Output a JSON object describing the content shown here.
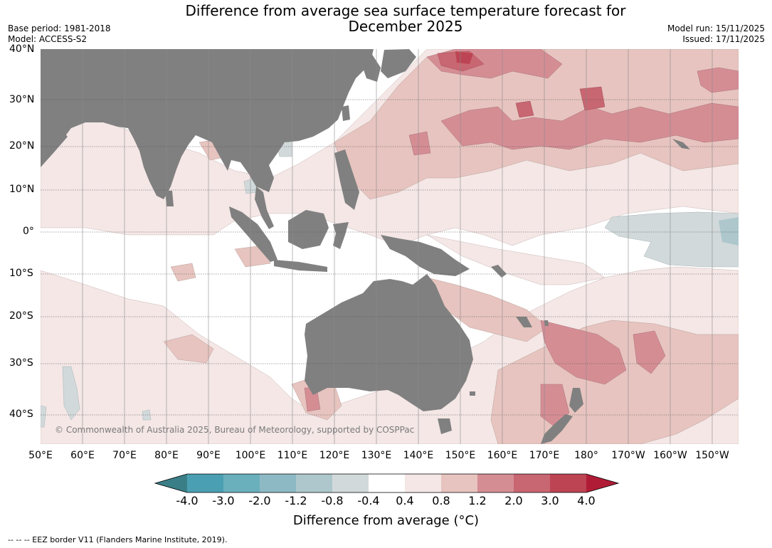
{
  "title_line1": "Difference from average sea surface temperature forecast for",
  "title_line2": "December 2025",
  "meta": {
    "base_period": "Base period: 1981-2018",
    "model": "Model: ACCESS-S2",
    "model_run": "Model run: 15/11/2025",
    "issued": "Issued: 17/11/2025"
  },
  "lat_labels": [
    "40°N",
    "30°N",
    "20°N",
    "10°N",
    "0°",
    "10°S",
    "20°S",
    "30°S",
    "40°S"
  ],
  "lon_labels": [
    "50°E",
    "60°E",
    "70°E",
    "80°E",
    "90°E",
    "100°E",
    "110°E",
    "120°E",
    "130°E",
    "140°E",
    "150°E",
    "160°E",
    "170°E",
    "180°",
    "170°W",
    "160°W",
    "150°W"
  ],
  "copyright": "© Commonwealth of Australia 2025, Bureau of Meteorology, supported by COSPPac",
  "colorbar": {
    "ticks": [
      "-4.0",
      "-3.0",
      "-2.0",
      "-1.2",
      "-0.8",
      "-0.4",
      "0.4",
      "0.8",
      "1.2",
      "2.0",
      "3.0",
      "4.0"
    ],
    "colors": [
      "#3a7f87",
      "#4aa0b2",
      "#6aafbc",
      "#8db9c4",
      "#adc7cc",
      "#d2d9db",
      "#ffffff",
      "#f4e7e6",
      "#e7c4bf",
      "#d58d94",
      "#c86671",
      "#bd4453",
      "#b01c36"
    ],
    "title": "Difference from average ($^\\circ$C)",
    "title_display": "Difference from average (°C)"
  },
  "land_color": "#808080",
  "footnote": "--  --  -- EEZ border V11 (Flanders Marine Institute, 2019)."
}
